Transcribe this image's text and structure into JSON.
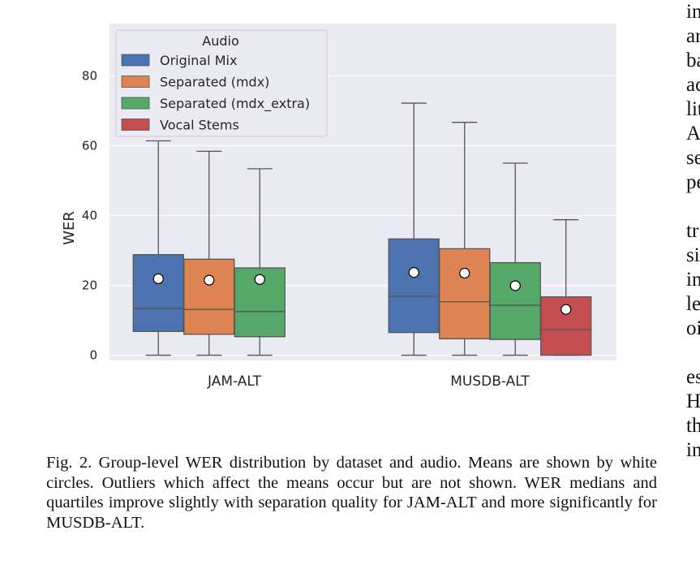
{
  "chart_data": {
    "type": "box",
    "categories": [
      "JAM-ALT",
      "MUSDB-ALT"
    ],
    "ylabel": "WER",
    "xlabel": "",
    "ylim": [
      -1.5,
      95
    ],
    "yticks": [
      0,
      20,
      40,
      60,
      80
    ],
    "grid": true,
    "legend": {
      "title": "Audio",
      "placement": "top-left"
    },
    "series": [
      {
        "name": "Original Mix",
        "color": "#4c72b0",
        "stats": [
          {
            "whisker_low": 0,
            "q1": 6.8,
            "median": 13.4,
            "q3": 28.8,
            "whisker_high": 61.4,
            "mean": 21.9
          },
          {
            "whisker_low": 0,
            "q1": 6.5,
            "median": 16.9,
            "q3": 33.3,
            "whisker_high": 72.2,
            "mean": 23.7
          }
        ]
      },
      {
        "name": "Separated (mdx)",
        "color": "#dd8452",
        "stats": [
          {
            "whisker_low": 0,
            "q1": 6.0,
            "median": 13.1,
            "q3": 27.5,
            "whisker_high": 58.4,
            "mean": 21.5
          },
          {
            "whisker_low": 0,
            "q1": 4.7,
            "median": 15.3,
            "q3": 30.5,
            "whisker_high": 66.7,
            "mean": 23.5
          }
        ]
      },
      {
        "name": "Separated (mdx_extra)",
        "color": "#55a868",
        "stats": [
          {
            "whisker_low": 0,
            "q1": 5.3,
            "median": 12.5,
            "q3": 25.0,
            "whisker_high": 53.4,
            "mean": 21.7
          },
          {
            "whisker_low": 0,
            "q1": 4.5,
            "median": 14.3,
            "q3": 26.5,
            "whisker_high": 55.0,
            "mean": 19.9
          }
        ]
      },
      {
        "name": "Vocal Stems",
        "color": "#c44e52",
        "stats": [
          null,
          {
            "whisker_low": 0,
            "q1": 0,
            "median": 7.3,
            "q3": 16.7,
            "whisker_high": 38.8,
            "mean": 13.1
          }
        ]
      }
    ]
  },
  "caption": {
    "text": "Fig. 2.  Group-level WER distribution by dataset and audio. Means are shown by white circles. Outliers which affect the means occur but are not shown. WER medians and quartiles improve slightly with separation quality for JAM-ALT and more significantly for MUSDB-ALT."
  },
  "side_text": [
    "in",
    "ar",
    "ba",
    "ac",
    "lit",
    "A",
    "se",
    "pe",
    "",
    "tr",
    "si",
    "in",
    "le",
    "oi",
    "",
    "es",
    "H",
    "th",
    "in"
  ]
}
